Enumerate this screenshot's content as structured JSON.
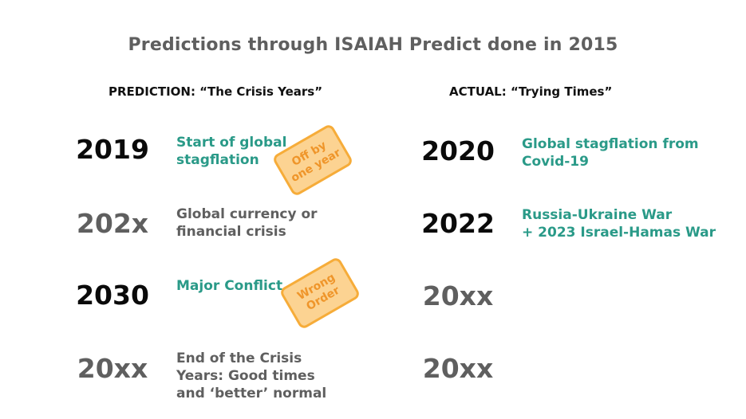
{
  "title": "Predictions through ISAIAH Predict done in 2015",
  "prediction": {
    "heading": "PREDICTION: “The Crisis Years”",
    "rows": [
      {
        "year": "2019",
        "text_lines": [
          "Start of global",
          "stagflation"
        ]
      },
      {
        "year": "202x",
        "text_lines": [
          "Global currency or",
          "financial crisis"
        ]
      },
      {
        "year": "2030",
        "text_lines": [
          "Major Conflict"
        ]
      },
      {
        "year": "20xx",
        "text_lines": [
          "End of the Crisis",
          "Years: Good times",
          "and ‘better’ normal"
        ]
      }
    ]
  },
  "actual": {
    "heading": "ACTUAL: “Trying Times”",
    "rows": [
      {
        "year": "2020",
        "text_lines": [
          "Global stagflation from",
          "Covid-19"
        ]
      },
      {
        "year": "2022",
        "text_lines": [
          "Russia-Ukraine War",
          "+ 2023 Israel-Hamas War"
        ]
      },
      {
        "year": "20xx",
        "text_lines": []
      },
      {
        "year": "20xx",
        "text_lines": []
      }
    ]
  },
  "stamps": {
    "off_by_one": [
      "Off by",
      "one year"
    ],
    "wrong_order": [
      "Wrong",
      "Order"
    ]
  },
  "colors": {
    "teal": "#2a9a88",
    "grey": "#5f5f5f",
    "dark": "#0a0a0a",
    "stamp_fill": "#fcd08a",
    "stamp_border": "#f6a62b",
    "stamp_text": "#ee8e1a"
  }
}
